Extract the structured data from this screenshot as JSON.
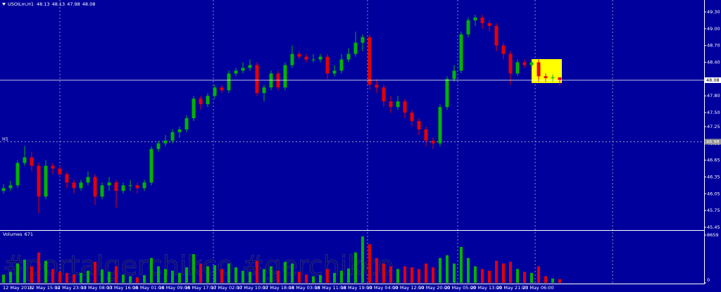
{
  "chart_data": {
    "type": "candlestick",
    "symbol": "USOILm,H1",
    "ylim": [
      45.45,
      49.3
    ],
    "yticks": [
      {
        "value": 49.3,
        "label": "49.30"
      },
      {
        "value": 49,
        "label": "49.00"
      },
      {
        "value": 48.7,
        "label": "48.70"
      },
      {
        "value": 48.4,
        "label": "48.40"
      },
      {
        "value": 47.8,
        "label": "47.80"
      },
      {
        "value": 47.5,
        "label": "47.50"
      },
      47.25,
      46.95,
      46.65,
      46.35,
      46.05,
      45.75,
      45.45
    ],
    "current_price": 48.08,
    "level": {
      "name": "H1",
      "value": 46.98
    },
    "up_color": "#00b400",
    "down_color": "#e60000",
    "candles": [
      [
        46.1,
        46.22,
        46.05,
        46.15
      ],
      [
        46.15,
        46.28,
        46.1,
        46.2
      ],
      [
        46.2,
        46.65,
        46.15,
        46.6
      ],
      [
        46.6,
        46.9,
        46.55,
        46.7
      ],
      [
        46.7,
        46.8,
        46.45,
        46.55
      ],
      [
        46.55,
        46.6,
        45.7,
        46.0
      ],
      [
        46.0,
        46.65,
        45.95,
        46.55
      ],
      [
        46.55,
        46.6,
        46.4,
        46.5
      ],
      [
        46.5,
        46.55,
        46.35,
        46.4
      ],
      [
        46.4,
        46.45,
        46.15,
        46.25
      ],
      [
        46.25,
        46.3,
        46.05,
        46.15
      ],
      [
        46.15,
        46.3,
        46.1,
        46.25
      ],
      [
        46.25,
        46.45,
        46.2,
        46.35
      ],
      [
        46.35,
        46.4,
        45.85,
        46.0
      ],
      [
        46.0,
        46.25,
        45.95,
        46.2
      ],
      [
        46.2,
        46.35,
        46.1,
        46.25
      ],
      [
        46.25,
        46.3,
        45.8,
        46.1
      ],
      [
        46.1,
        46.25,
        46.05,
        46.2
      ],
      [
        46.2,
        46.3,
        46.1,
        46.2
      ],
      [
        46.2,
        46.25,
        46.05,
        46.15
      ],
      [
        46.15,
        46.3,
        46.1,
        46.25
      ],
      [
        46.25,
        46.9,
        46.2,
        46.85
      ],
      [
        46.85,
        47.0,
        46.8,
        46.95
      ],
      [
        46.95,
        47.1,
        46.9,
        47.0
      ],
      [
        47.0,
        47.2,
        46.95,
        47.15
      ],
      [
        47.15,
        47.25,
        47.05,
        47.2
      ],
      [
        47.2,
        47.45,
        47.15,
        47.4
      ],
      [
        47.4,
        47.8,
        47.35,
        47.75
      ],
      [
        47.75,
        47.8,
        47.55,
        47.65
      ],
      [
        47.65,
        47.85,
        47.6,
        47.8
      ],
      [
        47.8,
        48.0,
        47.75,
        47.95
      ],
      [
        47.95,
        48.0,
        47.85,
        47.9
      ],
      [
        47.9,
        48.25,
        47.85,
        48.2
      ],
      [
        48.2,
        48.3,
        48.15,
        48.25
      ],
      [
        48.25,
        48.4,
        48.2,
        48.3
      ],
      [
        48.3,
        48.45,
        48.25,
        48.35
      ],
      [
        48.35,
        48.4,
        47.8,
        47.85
      ],
      [
        47.85,
        48.0,
        47.7,
        47.95
      ],
      [
        47.95,
        48.25,
        47.9,
        48.2
      ],
      [
        48.2,
        48.25,
        47.9,
        47.95
      ],
      [
        47.95,
        48.4,
        47.9,
        48.35
      ],
      [
        48.35,
        48.7,
        48.3,
        48.55
      ],
      [
        48.55,
        48.6,
        48.45,
        48.5
      ],
      [
        48.5,
        48.55,
        48.4,
        48.45
      ],
      [
        48.45,
        48.55,
        48.4,
        48.45
      ],
      [
        48.45,
        48.55,
        48.4,
        48.5
      ],
      [
        48.5,
        48.55,
        48.1,
        48.2
      ],
      [
        48.2,
        48.35,
        48.15,
        48.25
      ],
      [
        48.25,
        48.55,
        48.2,
        48.45
      ],
      [
        48.45,
        48.65,
        48.4,
        48.55
      ],
      [
        48.55,
        48.95,
        48.5,
        48.75
      ],
      [
        48.75,
        48.9,
        48.6,
        48.85
      ],
      [
        48.85,
        48.9,
        47.9,
        48.0
      ],
      [
        48.0,
        48.1,
        47.85,
        47.95
      ],
      [
        47.95,
        48.0,
        47.6,
        47.7
      ],
      [
        47.7,
        47.8,
        47.5,
        47.6
      ],
      [
        47.6,
        47.8,
        47.55,
        47.7
      ],
      [
        47.7,
        47.75,
        47.4,
        47.5
      ],
      [
        47.5,
        47.55,
        47.25,
        47.35
      ],
      [
        47.35,
        47.4,
        47.1,
        47.2
      ],
      [
        47.2,
        47.25,
        46.9,
        47.0
      ],
      [
        47.0,
        47.05,
        46.85,
        46.95
      ],
      [
        46.95,
        47.65,
        46.9,
        47.6
      ],
      [
        47.6,
        48.15,
        47.55,
        48.1
      ],
      [
        48.1,
        48.35,
        48.05,
        48.25
      ],
      [
        48.25,
        48.95,
        48.2,
        48.9
      ],
      [
        48.9,
        49.2,
        48.85,
        49.15
      ],
      [
        49.15,
        49.25,
        49.05,
        49.2
      ],
      [
        49.2,
        49.25,
        49.0,
        49.1
      ],
      [
        49.1,
        49.15,
        48.95,
        49.05
      ],
      [
        49.05,
        49.1,
        48.6,
        48.7
      ],
      [
        48.7,
        48.75,
        48.45,
        48.55
      ],
      [
        48.55,
        48.6,
        48.0,
        48.2
      ],
      [
        48.2,
        48.45,
        48.15,
        48.4
      ],
      [
        48.4,
        48.45,
        48.3,
        48.35
      ],
      [
        48.35,
        48.45,
        48.3,
        48.4
      ],
      [
        48.4,
        48.45,
        48.05,
        48.15
      ],
      [
        48.15,
        48.2,
        48.05,
        48.12
      ],
      [
        48.12,
        48.18,
        48.05,
        48.13
      ],
      [
        48.13,
        48.13,
        47.98,
        48.08
      ]
    ],
    "volume_title": "Volumes",
    "volume_ylim": [
      0,
      8659
    ],
    "volume_yticks": [
      8659,
      0
    ],
    "volumes": [
      1500,
      2000,
      3500,
      4200,
      3000,
      5500,
      4000,
      2500,
      2000,
      1800,
      1500,
      1800,
      2200,
      3800,
      2400,
      2000,
      3000,
      1500,
      1200,
      1000,
      1400,
      4500,
      3000,
      2500,
      2200,
      1800,
      2800,
      5200,
      3500,
      3000,
      3200,
      2500,
      3500,
      2800,
      2200,
      2000,
      4000,
      2500,
      3000,
      2200,
      3800,
      3500,
      2000,
      1500,
      1200,
      1400,
      2500,
      1800,
      2200,
      2600,
      5500,
      8400,
      7000,
      4500,
      3500,
      3000,
      2500,
      3000,
      2800,
      2500,
      3500,
      2800,
      4500,
      5000,
      3500,
      6500,
      4500,
      3000,
      2500,
      2200,
      4000,
      3500,
      3800,
      2500,
      2000,
      1800,
      3000,
      1200,
      800,
      671
    ],
    "time_labels": [
      "12 May 2016",
      "12 May 15:00",
      "12 May 23:00",
      "13 May 08:00",
      "13 May 16:00",
      "16 May 01:00",
      "16 May 09:00",
      "16 May 17:00",
      "17 May 02:00",
      "17 May 10:00",
      "17 May 18:00",
      "18 May 03:00",
      "18 May 11:00",
      "18 May 19:00",
      "19 May 04:00",
      "19 May 12:00",
      "19 May 20:00",
      "20 May 05:00",
      "20 May 13:00",
      "20 May 21:00",
      "23 May 06:00"
    ],
    "watermark": "#portalgerchikco #gerchikco"
  }
}
